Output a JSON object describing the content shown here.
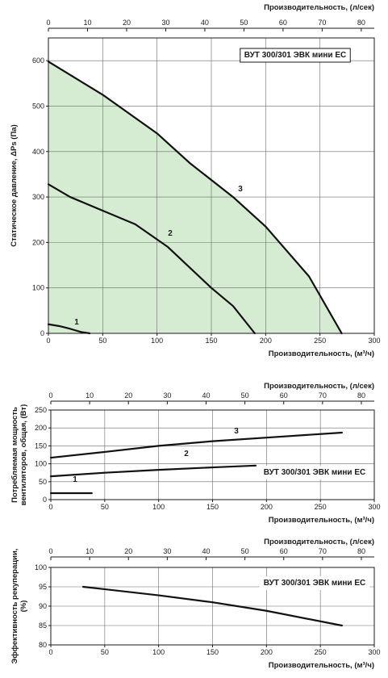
{
  "chart_data": [
    {
      "type": "line",
      "model": "ВУТ 300/301 ЭВК мини ЕС",
      "xlabel": "Производительность, (м³/ч)",
      "x2label": "Производительность, (л/сек)",
      "ylabel": "Статическое давление, ΔPs (Па)",
      "xlim": [
        0,
        300
      ],
      "ylim": [
        0,
        650
      ],
      "x2lim": [
        0,
        83.33
      ],
      "xticks": [
        0,
        50,
        100,
        150,
        200,
        250,
        300
      ],
      "x2ticks": [
        0,
        10,
        20,
        30,
        40,
        50,
        60,
        70,
        80
      ],
      "yticks": [
        0,
        100,
        200,
        300,
        400,
        500,
        600
      ],
      "fill_color": "#d6ecd2",
      "grid": true,
      "series": [
        {
          "name": "1",
          "x": [
            0,
            10,
            20,
            30,
            38
          ],
          "y": [
            20,
            16,
            10,
            3,
            0
          ]
        },
        {
          "name": "2",
          "x": [
            0,
            20,
            50,
            80,
            110,
            150,
            170,
            190
          ],
          "y": [
            328,
            300,
            270,
            240,
            190,
            100,
            60,
            0
          ]
        },
        {
          "name": "3",
          "x": [
            0,
            50,
            100,
            130,
            170,
            200,
            240,
            270
          ],
          "y": [
            598,
            525,
            440,
            375,
            300,
            235,
            125,
            0
          ]
        }
      ]
    },
    {
      "type": "line",
      "model": "ВУТ 300/301 ЭВК мини ЕС",
      "xlabel": "Производительность, (м³/ч)",
      "x2label": "Производительность, (л/сек)",
      "ylabel": "Потребляемая мощность вентиляторов, общая, (Вт)",
      "xlim": [
        0,
        300
      ],
      "ylim": [
        0,
        250
      ],
      "x2lim": [
        0,
        83.33
      ],
      "xticks": [
        0,
        50,
        100,
        150,
        200,
        250,
        300
      ],
      "x2ticks": [
        0,
        10,
        20,
        30,
        40,
        50,
        60,
        70,
        80
      ],
      "yticks": [
        0,
        50,
        100,
        150,
        200,
        250
      ],
      "grid": true,
      "series": [
        {
          "name": "1",
          "x": [
            0,
            38
          ],
          "y": [
            18,
            18
          ]
        },
        {
          "name": "2",
          "x": [
            0,
            50,
            100,
            150,
            190
          ],
          "y": [
            65,
            75,
            83,
            90,
            95
          ]
        },
        {
          "name": "3",
          "x": [
            0,
            50,
            100,
            150,
            200,
            270
          ],
          "y": [
            117,
            133,
            150,
            163,
            173,
            187
          ]
        }
      ]
    },
    {
      "type": "line",
      "model": "ВУТ 300/301 ЭВК мини ЕС",
      "xlabel": "Производительность, (м³/ч)",
      "x2label": "Производительность, (л/сек)",
      "ylabel": "Эффективность рекуперации, (%)",
      "xlim": [
        0,
        300
      ],
      "ylim": [
        80,
        100
      ],
      "x2lim": [
        0,
        83.33
      ],
      "xticks": [
        0,
        50,
        100,
        150,
        200,
        250,
        300
      ],
      "x2ticks": [
        0,
        10,
        20,
        30,
        40,
        50,
        60,
        70,
        80
      ],
      "yticks": [
        80,
        85,
        90,
        95,
        100
      ],
      "grid": true,
      "series": [
        {
          "name": "",
          "x": [
            30,
            100,
            150,
            200,
            270
          ],
          "y": [
            95,
            92.8,
            91,
            88.8,
            85
          ]
        }
      ]
    }
  ]
}
